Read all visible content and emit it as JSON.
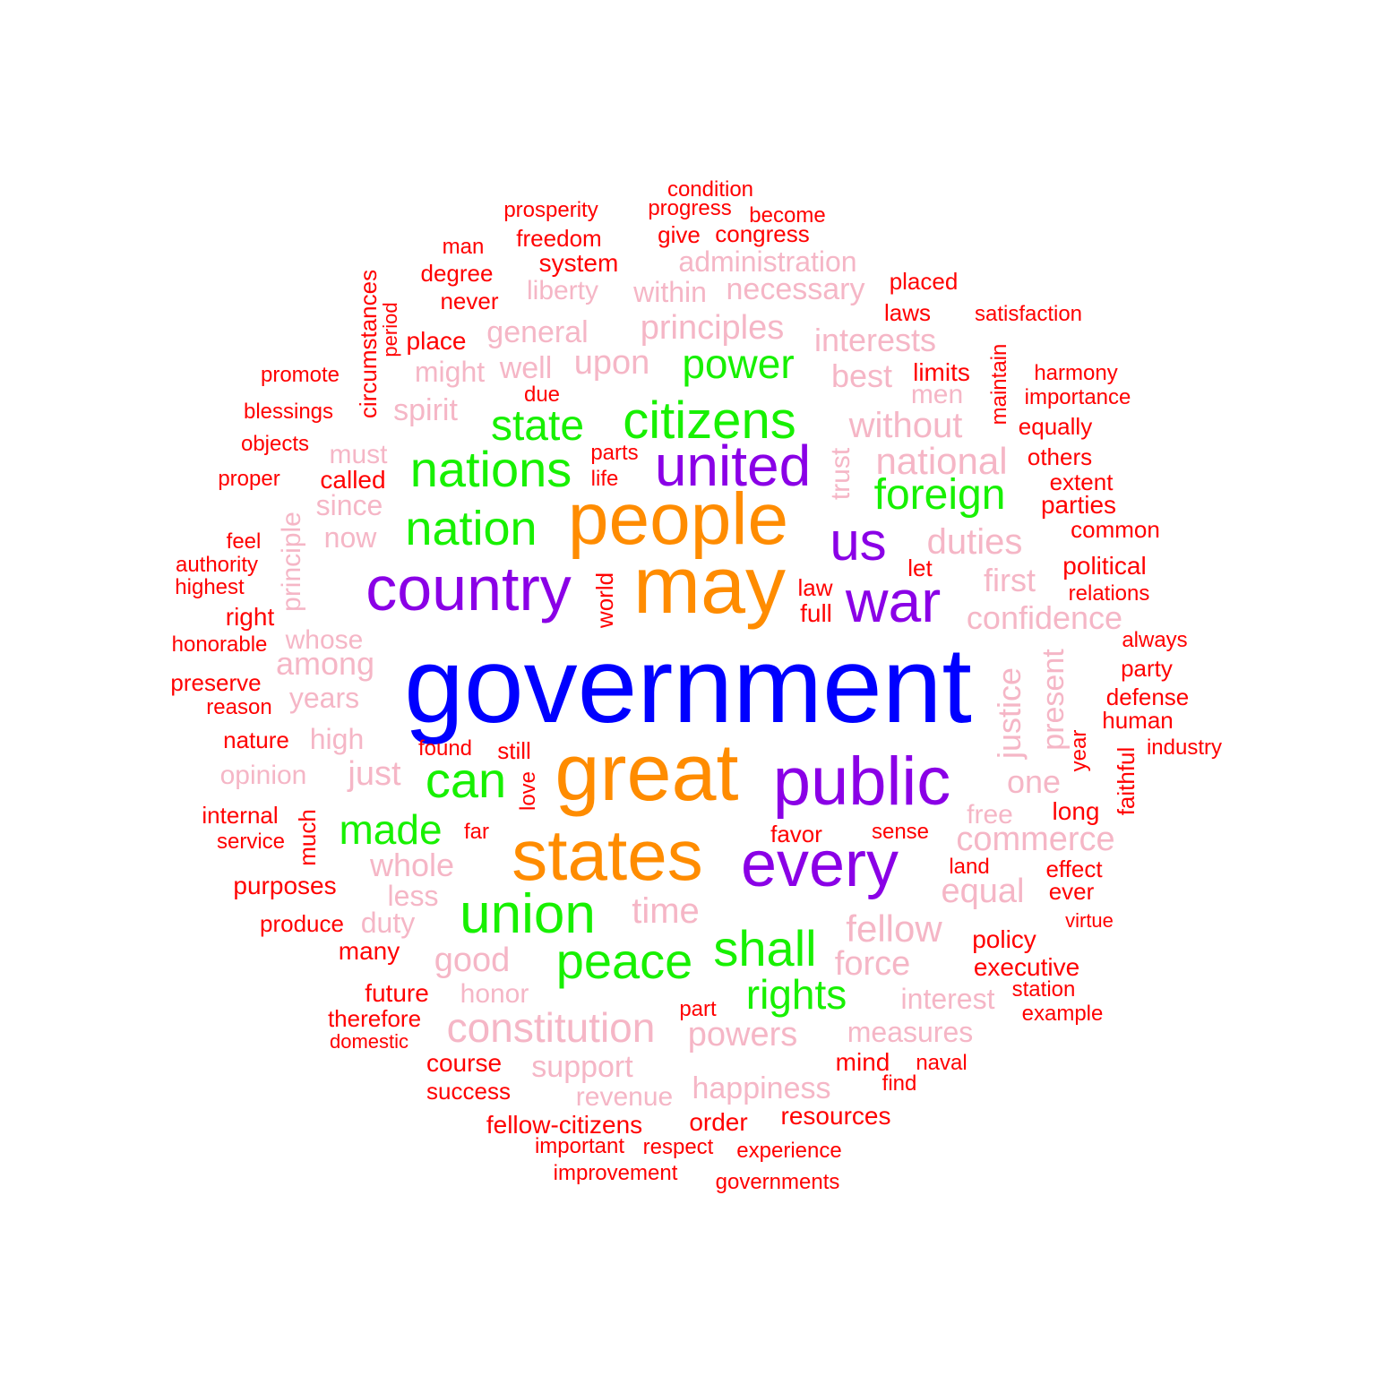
{
  "palette": {
    "t1": "#0000ff",
    "t2": "#ff8c00",
    "t3": "#8a00e6",
    "t4": "#17f000",
    "t5": "#f5b6c6",
    "t6": "#ff0000"
  },
  "words": [
    {
      "text": "government",
      "tier": 1
    },
    {
      "text": "may",
      "tier": 2
    },
    {
      "text": "people",
      "tier": 2
    },
    {
      "text": "great",
      "tier": 2
    },
    {
      "text": "states",
      "tier": 2
    },
    {
      "text": "country",
      "tier": 3
    },
    {
      "text": "war",
      "tier": 3
    },
    {
      "text": "united",
      "tier": 3
    },
    {
      "text": "us",
      "tier": 3
    },
    {
      "text": "public",
      "tier": 3
    },
    {
      "text": "every",
      "tier": 3
    },
    {
      "text": "citizens",
      "tier": 4
    },
    {
      "text": "power",
      "tier": 4
    },
    {
      "text": "state",
      "tier": 4
    },
    {
      "text": "nations",
      "tier": 4
    },
    {
      "text": "nation",
      "tier": 4
    },
    {
      "text": "foreign",
      "tier": 4
    },
    {
      "text": "can",
      "tier": 4
    },
    {
      "text": "made",
      "tier": 4
    },
    {
      "text": "union",
      "tier": 4
    },
    {
      "text": "peace",
      "tier": 4
    },
    {
      "text": "shall",
      "tier": 4
    },
    {
      "text": "rights",
      "tier": 4
    },
    {
      "text": "administration",
      "tier": 5
    },
    {
      "text": "within",
      "tier": 5
    },
    {
      "text": "necessary",
      "tier": 5
    },
    {
      "text": "liberty",
      "tier": 5
    },
    {
      "text": "general",
      "tier": 5
    },
    {
      "text": "principles",
      "tier": 5
    },
    {
      "text": "interests",
      "tier": 5
    },
    {
      "text": "might",
      "tier": 5
    },
    {
      "text": "well",
      "tier": 5
    },
    {
      "text": "upon",
      "tier": 5
    },
    {
      "text": "best",
      "tier": 5
    },
    {
      "text": "men",
      "tier": 5
    },
    {
      "text": "spirit",
      "tier": 5
    },
    {
      "text": "without",
      "tier": 5
    },
    {
      "text": "must",
      "tier": 5
    },
    {
      "text": "trust",
      "tier": 5
    },
    {
      "text": "national",
      "tier": 5
    },
    {
      "text": "since",
      "tier": 5
    },
    {
      "text": "principle",
      "tier": 5
    },
    {
      "text": "now",
      "tier": 5
    },
    {
      "text": "duties",
      "tier": 5
    },
    {
      "text": "first",
      "tier": 5
    },
    {
      "text": "confidence",
      "tier": 5
    },
    {
      "text": "whose",
      "tier": 5
    },
    {
      "text": "among",
      "tier": 5
    },
    {
      "text": "years",
      "tier": 5
    },
    {
      "text": "justice",
      "tier": 5
    },
    {
      "text": "present",
      "tier": 5
    },
    {
      "text": "high",
      "tier": 5
    },
    {
      "text": "opinion",
      "tier": 5
    },
    {
      "text": "just",
      "tier": 5
    },
    {
      "text": "one",
      "tier": 5
    },
    {
      "text": "free",
      "tier": 5
    },
    {
      "text": "commerce",
      "tier": 5
    },
    {
      "text": "whole",
      "tier": 5
    },
    {
      "text": "equal",
      "tier": 5
    },
    {
      "text": "less",
      "tier": 5
    },
    {
      "text": "time",
      "tier": 5
    },
    {
      "text": "duty",
      "tier": 5
    },
    {
      "text": "fellow",
      "tier": 5
    },
    {
      "text": "good",
      "tier": 5
    },
    {
      "text": "force",
      "tier": 5
    },
    {
      "text": "honor",
      "tier": 5
    },
    {
      "text": "interest",
      "tier": 5
    },
    {
      "text": "constitution",
      "tier": 5
    },
    {
      "text": "powers",
      "tier": 5
    },
    {
      "text": "measures",
      "tier": 5
    },
    {
      "text": "support",
      "tier": 5
    },
    {
      "text": "happiness",
      "tier": 5
    },
    {
      "text": "revenue",
      "tier": 5
    },
    {
      "text": "condition",
      "tier": 6
    },
    {
      "text": "prosperity",
      "tier": 6
    },
    {
      "text": "progress",
      "tier": 6
    },
    {
      "text": "become",
      "tier": 6
    },
    {
      "text": "man",
      "tier": 6
    },
    {
      "text": "freedom",
      "tier": 6
    },
    {
      "text": "give",
      "tier": 6
    },
    {
      "text": "congress",
      "tier": 6
    },
    {
      "text": "degree",
      "tier": 6
    },
    {
      "text": "system",
      "tier": 6
    },
    {
      "text": "circumstances",
      "tier": 6
    },
    {
      "text": "period",
      "tier": 6
    },
    {
      "text": "placed",
      "tier": 6
    },
    {
      "text": "never",
      "tier": 6
    },
    {
      "text": "laws",
      "tier": 6
    },
    {
      "text": "satisfaction",
      "tier": 6
    },
    {
      "text": "place",
      "tier": 6
    },
    {
      "text": "maintain",
      "tier": 6
    },
    {
      "text": "promote",
      "tier": 6
    },
    {
      "text": "limits",
      "tier": 6
    },
    {
      "text": "harmony",
      "tier": 6
    },
    {
      "text": "due",
      "tier": 6
    },
    {
      "text": "importance",
      "tier": 6
    },
    {
      "text": "blessings",
      "tier": 6
    },
    {
      "text": "equally",
      "tier": 6
    },
    {
      "text": "objects",
      "tier": 6
    },
    {
      "text": "parts",
      "tier": 6
    },
    {
      "text": "others",
      "tier": 6
    },
    {
      "text": "proper",
      "tier": 6
    },
    {
      "text": "called",
      "tier": 6
    },
    {
      "text": "life",
      "tier": 6
    },
    {
      "text": "extent",
      "tier": 6
    },
    {
      "text": "parties",
      "tier": 6
    },
    {
      "text": "common",
      "tier": 6
    },
    {
      "text": "feel",
      "tier": 6
    },
    {
      "text": "authority",
      "tier": 6
    },
    {
      "text": "highest",
      "tier": 6
    },
    {
      "text": "let",
      "tier": 6
    },
    {
      "text": "political",
      "tier": 6
    },
    {
      "text": "world",
      "tier": 6
    },
    {
      "text": "law",
      "tier": 6
    },
    {
      "text": "relations",
      "tier": 6
    },
    {
      "text": "right",
      "tier": 6
    },
    {
      "text": "full",
      "tier": 6
    },
    {
      "text": "honorable",
      "tier": 6
    },
    {
      "text": "always",
      "tier": 6
    },
    {
      "text": "party",
      "tier": 6
    },
    {
      "text": "preserve",
      "tier": 6
    },
    {
      "text": "defense",
      "tier": 6
    },
    {
      "text": "reason",
      "tier": 6
    },
    {
      "text": "human",
      "tier": 6
    },
    {
      "text": "nature",
      "tier": 6
    },
    {
      "text": "found",
      "tier": 6
    },
    {
      "text": "still",
      "tier": 6
    },
    {
      "text": "year",
      "tier": 6
    },
    {
      "text": "industry",
      "tier": 6
    },
    {
      "text": "faithful",
      "tier": 6
    },
    {
      "text": "love",
      "tier": 6
    },
    {
      "text": "internal",
      "tier": 6
    },
    {
      "text": "much",
      "tier": 6
    },
    {
      "text": "long",
      "tier": 6
    },
    {
      "text": "service",
      "tier": 6
    },
    {
      "text": "far",
      "tier": 6
    },
    {
      "text": "favor",
      "tier": 6
    },
    {
      "text": "sense",
      "tier": 6
    },
    {
      "text": "land",
      "tier": 6
    },
    {
      "text": "effect",
      "tier": 6
    },
    {
      "text": "purposes",
      "tier": 6
    },
    {
      "text": "ever",
      "tier": 6
    },
    {
      "text": "produce",
      "tier": 6
    },
    {
      "text": "virtue",
      "tier": 6
    },
    {
      "text": "many",
      "tier": 6
    },
    {
      "text": "policy",
      "tier": 6
    },
    {
      "text": "executive",
      "tier": 6
    },
    {
      "text": "future",
      "tier": 6
    },
    {
      "text": "station",
      "tier": 6
    },
    {
      "text": "therefore",
      "tier": 6
    },
    {
      "text": "part",
      "tier": 6
    },
    {
      "text": "example",
      "tier": 6
    },
    {
      "text": "domestic",
      "tier": 6
    },
    {
      "text": "course",
      "tier": 6
    },
    {
      "text": "mind",
      "tier": 6
    },
    {
      "text": "naval",
      "tier": 6
    },
    {
      "text": "find",
      "tier": 6
    },
    {
      "text": "success",
      "tier": 6
    },
    {
      "text": "fellow-citizens",
      "tier": 6
    },
    {
      "text": "order",
      "tier": 6
    },
    {
      "text": "resources",
      "tier": 6
    },
    {
      "text": "important",
      "tier": 6
    },
    {
      "text": "respect",
      "tier": 6
    },
    {
      "text": "experience",
      "tier": 6
    },
    {
      "text": "improvement",
      "tier": 6
    },
    {
      "text": "governments",
      "tier": 6
    }
  ]
}
